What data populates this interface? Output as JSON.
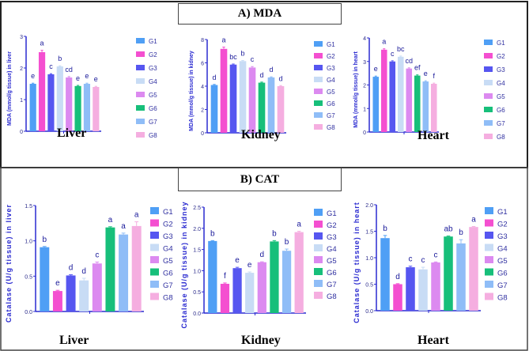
{
  "sections": [
    {
      "title": "A) MDA"
    },
    {
      "title": "B) CAT"
    }
  ],
  "colors": {
    "axis": "#2a2ad0",
    "groups": [
      "#4f9ff5",
      "#f44fd0",
      "#5656f0",
      "#c8dcf5",
      "#dc8af0",
      "#17bf7a",
      "#8fbdf7",
      "#f5aee0"
    ]
  },
  "chart_data": [
    {
      "type": "bar",
      "title": "Liver",
      "ylabel": "MDA (mmol/g tissue) in liver",
      "ylim": [
        0,
        3
      ],
      "yticks": [
        "0",
        "1",
        "2",
        "3"
      ],
      "tickvals": [
        0,
        1,
        2,
        3
      ],
      "categories": [
        "G1",
        "G2",
        "G3",
        "G4",
        "G5",
        "G6",
        "G7",
        "G8"
      ],
      "values": [
        1.5,
        2.5,
        1.8,
        2.05,
        1.7,
        1.43,
        1.5,
        1.4
      ],
      "errors": [
        0.02,
        0.06,
        0.02,
        0.02,
        0.03,
        0.02,
        0.02,
        0.02
      ],
      "letters": [
        "e",
        "a",
        "c",
        "b",
        "cd",
        "e",
        "e",
        "e"
      ],
      "legend": [
        "G1",
        "G2",
        "G3",
        "G4",
        "G5",
        "G6",
        "G7",
        "G8"
      ]
    },
    {
      "type": "bar",
      "title": "Kidney",
      "ylabel": "MDA (mmol/g tissue) in kidney",
      "ylim": [
        0,
        8
      ],
      "yticks": [
        "0",
        "2",
        "4",
        "6",
        "8"
      ],
      "tickvals": [
        0,
        2,
        4,
        6,
        8
      ],
      "categories": [
        "G1",
        "G2",
        "G3",
        "G4",
        "G5",
        "G6",
        "G7",
        "G8"
      ],
      "values": [
        4.1,
        7.2,
        5.85,
        6.15,
        5.6,
        4.3,
        4.75,
        4.0
      ],
      "errors": [
        0.05,
        0.15,
        0.05,
        0.05,
        0.08,
        0.05,
        0.05,
        0.05
      ],
      "letters": [
        "d",
        "a",
        "bc",
        "b",
        "c",
        "d",
        "d",
        "d"
      ],
      "legend": [
        "G1",
        "G2",
        "G3",
        "G4",
        "G5",
        "G6",
        "G7",
        "G8"
      ]
    },
    {
      "type": "bar",
      "title": "Heart",
      "ylabel": "MDA (mmol/g tissue) in heart",
      "ylim": [
        0,
        4
      ],
      "yticks": [
        "0",
        "1",
        "2",
        "3",
        "4"
      ],
      "tickvals": [
        0,
        1,
        2,
        3,
        4
      ],
      "categories": [
        "G1",
        "G2",
        "G3",
        "G4",
        "G5",
        "G6",
        "G7",
        "G8"
      ],
      "values": [
        2.35,
        3.5,
        3.0,
        3.2,
        2.7,
        2.4,
        2.15,
        2.05
      ],
      "errors": [
        0.03,
        0.04,
        0.03,
        0.03,
        0.03,
        0.03,
        0.03,
        0.03
      ],
      "letters": [
        "e",
        "a",
        "c",
        "bc",
        "cd",
        "ef",
        "e",
        "f"
      ],
      "legend": [
        "G1",
        "G2",
        "G3",
        "G4",
        "G5",
        "G6",
        "G7",
        "G8"
      ]
    },
    {
      "type": "bar",
      "title": "Liver",
      "ylabel": "Catalase (U/g tissue) in liver",
      "ylim": [
        0,
        1.5
      ],
      "yticks": [
        "0.0",
        "0.5",
        "1.0",
        "1.5"
      ],
      "tickvals": [
        0,
        0.5,
        1,
        1.5
      ],
      "categories": [
        "G1",
        "G2",
        "G3",
        "G4",
        "G5",
        "G6",
        "G7",
        "G8"
      ],
      "values": [
        0.91,
        0.29,
        0.51,
        0.44,
        0.68,
        1.19,
        1.09,
        1.21
      ],
      "errors": [
        0.01,
        0.01,
        0.01,
        0.03,
        0.02,
        0.01,
        0.02,
        0.06
      ],
      "letters": [
        "b",
        "e",
        "d",
        "d",
        "c",
        "a",
        "a",
        "a"
      ],
      "legend": [
        "G1",
        "G2",
        "G3",
        "G4",
        "G5",
        "G6",
        "G7",
        "G8"
      ]
    },
    {
      "type": "bar",
      "title": "Kidney",
      "ylabel": "Catalase (U/g tissue) in kidney",
      "ylim": [
        0,
        2.5
      ],
      "yticks": [
        "0.0",
        "0.5",
        "1.0",
        "1.5",
        "2.0",
        "2.5"
      ],
      "tickvals": [
        0,
        0.5,
        1,
        1.5,
        2,
        2.5
      ],
      "categories": [
        "G1",
        "G2",
        "G3",
        "G4",
        "G5",
        "G6",
        "G7",
        "G8"
      ],
      "values": [
        1.7,
        0.69,
        1.06,
        0.95,
        1.2,
        1.69,
        1.47,
        1.91
      ],
      "errors": [
        0.01,
        0.02,
        0.02,
        0.02,
        0.01,
        0.02,
        0.04,
        0.02
      ],
      "letters": [
        "b",
        "f",
        "e",
        "e",
        "d",
        "b",
        "b",
        "a"
      ],
      "legend": [
        "G1",
        "G2",
        "G3",
        "G4",
        "G5",
        "G6",
        "G7",
        "G8"
      ]
    },
    {
      "type": "bar",
      "title": "Heart",
      "ylabel": "Catalase (U/g tissue) in heart",
      "ylim": [
        0,
        2.0
      ],
      "yticks": [
        "0.0",
        "0.5",
        "1.0",
        "1.5",
        "2.0"
      ],
      "tickvals": [
        0,
        0.5,
        1,
        1.5,
        2
      ],
      "categories": [
        "G1",
        "G2",
        "G3",
        "G4",
        "G5",
        "G6",
        "G7",
        "G8"
      ],
      "values": [
        1.37,
        0.5,
        0.82,
        0.78,
        0.91,
        1.4,
        1.27,
        1.58
      ],
      "errors": [
        0.05,
        0.01,
        0.02,
        0.04,
        0.01,
        0.01,
        0.07,
        0.01
      ],
      "letters": [
        "b",
        "d",
        "c",
        "c",
        "c",
        "ab",
        "b",
        "a"
      ],
      "legend": [
        "G1",
        "G2",
        "G3",
        "G4",
        "G5",
        "G6",
        "G7",
        "G8"
      ]
    }
  ]
}
